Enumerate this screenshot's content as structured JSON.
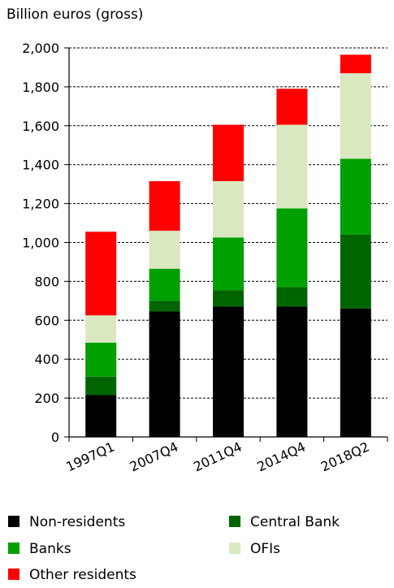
{
  "chart_data": {
    "type": "bar",
    "stacked": true,
    "ylabel": "Billion euros (gross)",
    "ylim": [
      0,
      2000
    ],
    "yticks": [
      0,
      200,
      400,
      600,
      800,
      1000,
      1200,
      1400,
      1600,
      1800,
      2000
    ],
    "ytick_labels": [
      "0",
      "200",
      "400",
      "600",
      "800",
      "1,000",
      "1,200",
      "1,400",
      "1,600",
      "1,800",
      "2,000"
    ],
    "grid": "horizontal dashed",
    "legend_position": "bottom",
    "categories": [
      "1997Q1",
      "2007Q4",
      "2011Q4",
      "2014Q4",
      "2018Q2"
    ],
    "series": [
      {
        "name": "Non-residents",
        "color": "#000000",
        "values": [
          215,
          645,
          670,
          670,
          660
        ]
      },
      {
        "name": "Central Bank",
        "color": "#006400",
        "values": [
          95,
          55,
          85,
          100,
          380
        ]
      },
      {
        "name": "Banks",
        "color": "#00a000",
        "values": [
          175,
          165,
          270,
          405,
          390
        ]
      },
      {
        "name": "OFIs",
        "color": "#d9e8c0",
        "values": [
          140,
          195,
          290,
          430,
          440
        ]
      },
      {
        "name": "Other residents",
        "color": "#ff0000",
        "values": [
          430,
          255,
          290,
          185,
          95
        ]
      }
    ]
  }
}
